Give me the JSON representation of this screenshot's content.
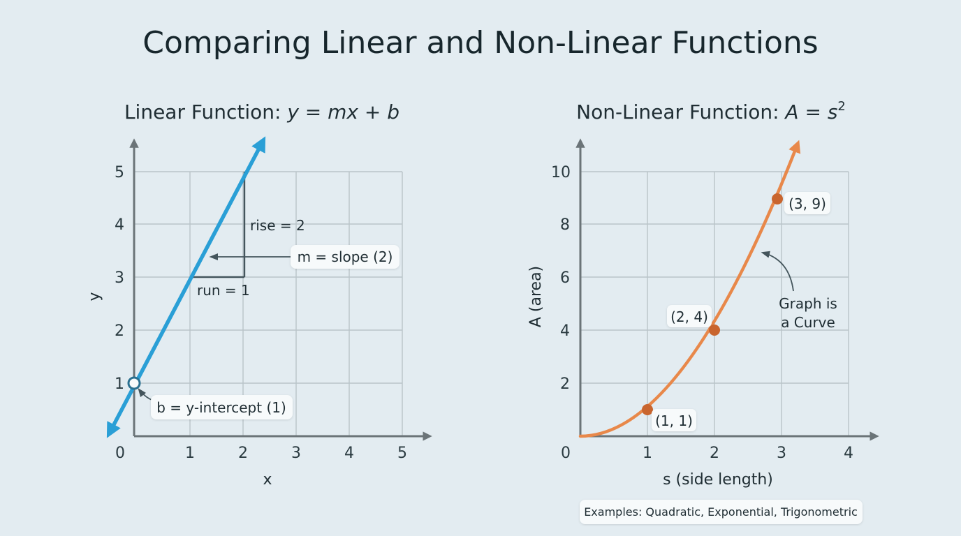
{
  "title": "Comparing Linear and Non-Linear Functions",
  "left_panel": {
    "subtitle_prefix": "Linear Function: ",
    "formula": "y = mx + b",
    "xlabel": "x",
    "ylabel": "y",
    "x_ticks": [
      "0",
      "1",
      "2",
      "3",
      "4",
      "5"
    ],
    "y_ticks": [
      "1",
      "2",
      "3",
      "4",
      "5"
    ],
    "rise_label": "rise = 2",
    "run_label": "run = 1",
    "slope_label": "m = slope (2)",
    "intercept_label": "b = y-intercept (1)",
    "line_color": "#2a9fd6"
  },
  "right_panel": {
    "subtitle_prefix": "Non-Linear Function: ",
    "formula_main": "A = s",
    "formula_exponent": "2",
    "xlabel": "s (side length)",
    "ylabel": "A (area)",
    "x_ticks": [
      "0",
      "1",
      "2",
      "3",
      "4"
    ],
    "y_ticks": [
      "2",
      "4",
      "6",
      "8",
      "10"
    ],
    "points": [
      "(1, 1)",
      "(2, 4)",
      "(3, 9)"
    ],
    "curve_note_line1": "Graph is",
    "curve_note_line2": "a Curve",
    "examples": "Examples: Quadratic, Exponential, Trigonometric",
    "curve_color": "#e8884a",
    "point_color": "#c9652e"
  },
  "chart_data": [
    {
      "type": "line",
      "title": "Linear Function: y = mx + b",
      "xlabel": "x",
      "ylabel": "y",
      "xlim": [
        0,
        5
      ],
      "ylim": [
        0,
        5
      ],
      "x": [
        0,
        1,
        2
      ],
      "y": [
        1,
        3,
        5
      ],
      "slope": 2,
      "intercept": 1,
      "grid": true
    },
    {
      "type": "line",
      "title": "Non-Linear Function: A = s²",
      "xlabel": "s (side length)",
      "ylabel": "A (area)",
      "xlim": [
        0,
        4
      ],
      "ylim": [
        0,
        10
      ],
      "x": [
        0,
        1,
        2,
        3
      ],
      "y": [
        0,
        1,
        4,
        9
      ],
      "grid": true
    }
  ]
}
